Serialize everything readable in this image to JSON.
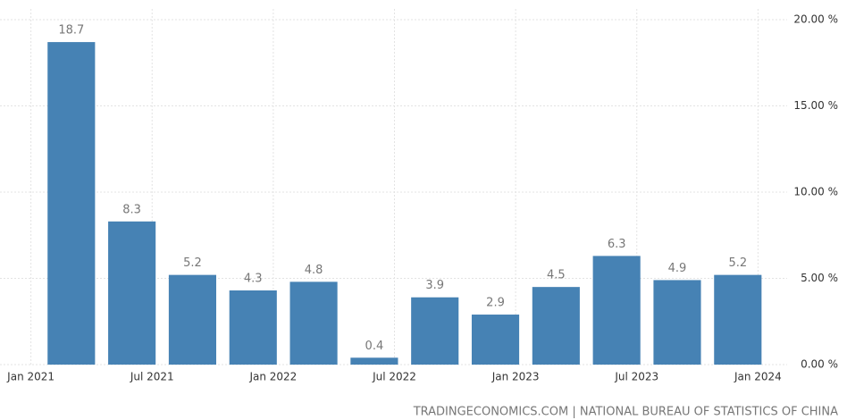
{
  "chart_data": {
    "type": "bar",
    "x": [
      "2021-03",
      "2021-06",
      "2021-09",
      "2021-12",
      "2022-03",
      "2022-06",
      "2022-09",
      "2022-12",
      "2023-03",
      "2023-06",
      "2023-09",
      "2023-12"
    ],
    "values": [
      18.7,
      8.3,
      5.2,
      4.3,
      4.8,
      0.4,
      3.9,
      2.9,
      4.5,
      6.3,
      4.9,
      5.2
    ],
    "color": "#4682b4",
    "xlim": [
      "2020-12",
      "2024-02"
    ],
    "xticks": [
      {
        "value": "2021-01",
        "label": "Jan 2021"
      },
      {
        "value": "2021-07",
        "label": "Jul 2021"
      },
      {
        "value": "2022-01",
        "label": "Jan 2022"
      },
      {
        "value": "2022-07",
        "label": "Jul 2022"
      },
      {
        "value": "2023-01",
        "label": "Jan 2023"
      },
      {
        "value": "2023-07",
        "label": "Jul 2023"
      },
      {
        "value": "2024-01",
        "label": "Jan 2024"
      }
    ],
    "ylim": [
      0,
      20
    ],
    "yticks": [
      {
        "value": 0,
        "label": "0.00 %"
      },
      {
        "value": 5,
        "label": "5.00 %"
      },
      {
        "value": 10,
        "label": "10.00 %"
      },
      {
        "value": 15,
        "label": "15.00 %"
      },
      {
        "value": 20,
        "label": "20.00 %"
      }
    ],
    "grid": true,
    "source": "TRADINGECONOMICS.COM | NATIONAL BUREAU OF STATISTICS OF CHINA"
  }
}
